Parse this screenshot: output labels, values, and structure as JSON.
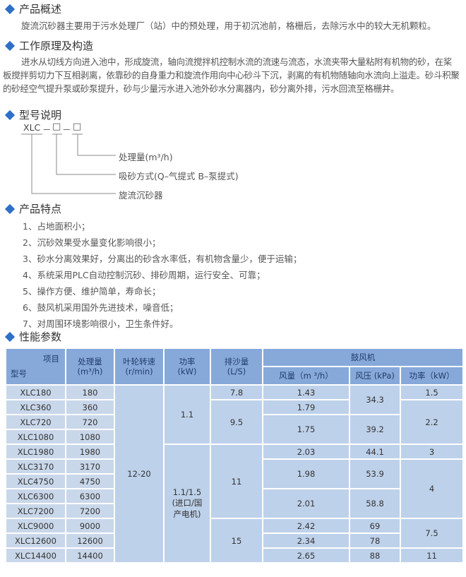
{
  "sections": {
    "overview": {
      "title": "产品概述",
      "text": "旋流沉砂器主要用于污水处理厂（站）中的预处理，用于初沉池前，格栅后，去除污水中的较大无机颗粒。"
    },
    "principle": {
      "title": "工作原理及构造",
      "text": "进水从切线方向进入池中，形成旋流，轴向流搅拌机控制水流的流速与流态，水流夹带大量粘附有机物的砂，在桨板搅拌剪切力下互相剥离，依靠砂的自身重力和旋流作用向中心砂斗下沉，剥离的有机物随轴向水流向上溢走。砂斗积聚的砂经空气提升泵或砂泵提升，砂与少量污水进入池外砂水分离器内，砂分离外排，污水回流至格栅井。"
    },
    "model": {
      "title": "型号说明",
      "code": "XLC",
      "sep": "－",
      "box": "□",
      "labels": [
        "处理量(m³/h)",
        "吸砂方式(Q–气提式  B–泵提式)",
        "旋流沉砂器"
      ]
    },
    "features": {
      "title": "产品特点",
      "items": [
        "1、占地面积小；",
        "2、沉砂效果受水量变化影响很小；",
        "3、砂水分离效果好，分离出的砂含水率低，有机物含量少，便于运输；",
        "4、系统采用PLC自动控制沉砂、排砂周期，运行安全、可靠；",
        "5、操作方便、维护简单，寿命长；",
        "6、鼓风机采用国外先进技术，噪音低；",
        "7、对周围环境影响很小，卫生条件好。"
      ]
    },
    "params": {
      "title": "性能参数"
    }
  },
  "table": {
    "header": {
      "item": "项目",
      "model": "型号",
      "capacity": "处理量\n(m³/h)",
      "speed": "叶轮转速\n(r/min)",
      "power": "功率\n(kW)",
      "sand": "排沙量\n(L/S)",
      "blower": "鼓风机",
      "air": "风量（m ³/h）",
      "pressure": "风压 (kPa)",
      "bpower": "功率（kW）"
    },
    "rows": [
      [
        {
          "v": "XLC180"
        },
        {
          "v": "180"
        },
        {
          "v": "12-20",
          "rs": 12
        },
        {
          "v": "1.1",
          "rs": 4
        },
        {
          "v": "7.8"
        },
        {
          "v": "1.43"
        },
        {
          "v": "34.3",
          "rs": 2
        },
        {
          "v": "1.5"
        }
      ],
      [
        {
          "v": "XLC360"
        },
        {
          "v": "360"
        },
        {
          "v": "9.5",
          "rs": 3
        },
        {
          "v": "1.79"
        },
        {
          "v": "2.2",
          "rs": 3
        }
      ],
      [
        {
          "v": "XLC720"
        },
        {
          "v": "720"
        },
        {
          "v": "1.75",
          "rs": 2
        },
        {
          "v": "39.2",
          "rs": 2
        }
      ],
      [
        {
          "v": "XLC1080"
        },
        {
          "v": "1080"
        }
      ],
      [
        {
          "v": "XLC1980"
        },
        {
          "v": "1980"
        },
        {
          "v": "1.1/1.5\n(进口/国\n产电机)",
          "rs": 8
        },
        {
          "v": "11",
          "rs": 5
        },
        {
          "v": "2.03"
        },
        {
          "v": "44.1"
        },
        {
          "v": "3"
        }
      ],
      [
        {
          "v": "XLC3170"
        },
        {
          "v": "3170"
        },
        {
          "v": "1.98",
          "rs": 2
        },
        {
          "v": "53.9",
          "rs": 2
        },
        {
          "v": "4",
          "rs": 4
        }
      ],
      [
        {
          "v": "XLC4750"
        },
        {
          "v": "4750"
        }
      ],
      [
        {
          "v": "XLC6300"
        },
        {
          "v": "6300"
        },
        {
          "v": "2.01",
          "rs": 2
        },
        {
          "v": "58.8",
          "rs": 2
        }
      ],
      [
        {
          "v": "XLC7200"
        },
        {
          "v": "7200"
        }
      ],
      [
        {
          "v": "XLC9000"
        },
        {
          "v": "9000"
        },
        {
          "v": "15",
          "rs": 3
        },
        {
          "v": "2.42"
        },
        {
          "v": "69"
        },
        {
          "v": "7.5",
          "rs": 2
        }
      ],
      [
        {
          "v": "XLC12600"
        },
        {
          "v": "12600"
        },
        {
          "v": "2.34"
        },
        {
          "v": "78"
        }
      ],
      [
        {
          "v": "XLC14400"
        },
        {
          "v": "14400"
        },
        {
          "v": "2.65"
        },
        {
          "v": "88"
        },
        {
          "v": "11"
        }
      ]
    ]
  },
  "colors": {
    "diamond": "#2f6fc6",
    "header_bg": "#87a9da",
    "cell_bg": "#bed1ea"
  }
}
